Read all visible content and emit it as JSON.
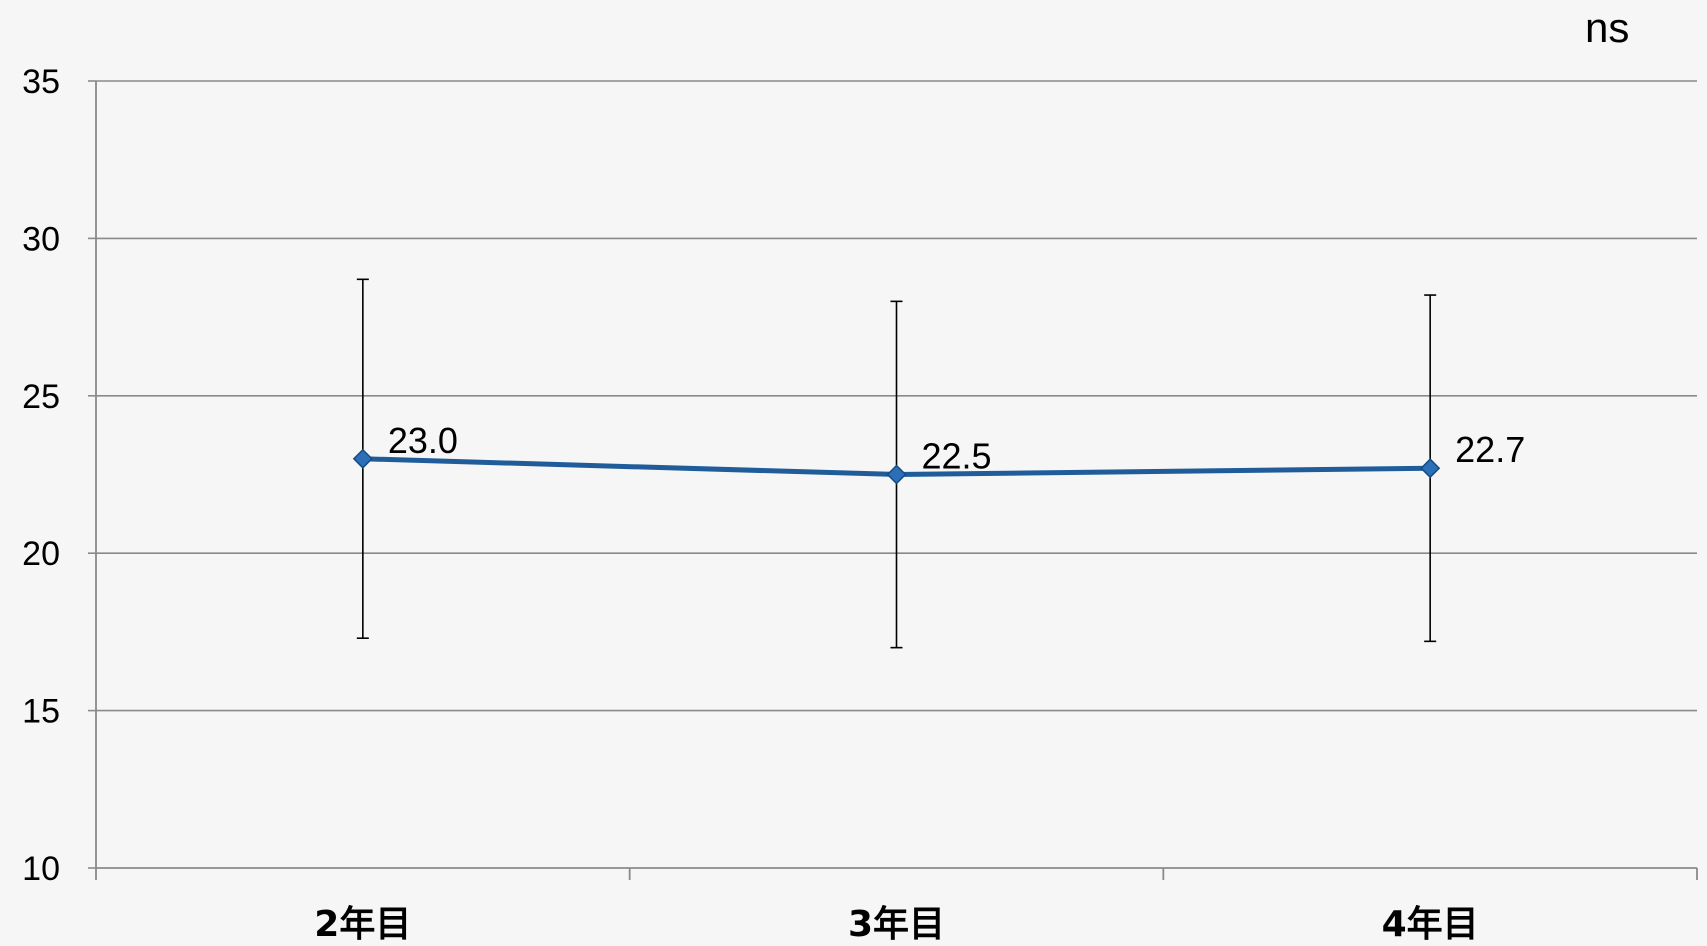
{
  "chart_data": {
    "type": "line",
    "categories": [
      "2年目",
      "3年目",
      "4年目"
    ],
    "series": [
      {
        "values": [
          23.0,
          22.5,
          22.7
        ],
        "data_labels": [
          "23.0",
          "22.5",
          "22.7"
        ],
        "error_low": [
          17.3,
          17.0,
          17.2
        ],
        "error_high": [
          28.7,
          28.0,
          28.2
        ],
        "color": "#1f5c99",
        "marker": "diamond"
      }
    ],
    "ylim": [
      10,
      35
    ],
    "yticks": [
      10,
      15,
      20,
      25,
      30,
      35
    ],
    "ytick_labels": [
      "10",
      "15",
      "20",
      "25",
      "30",
      "35"
    ],
    "grid": true,
    "annotation": "ns"
  }
}
